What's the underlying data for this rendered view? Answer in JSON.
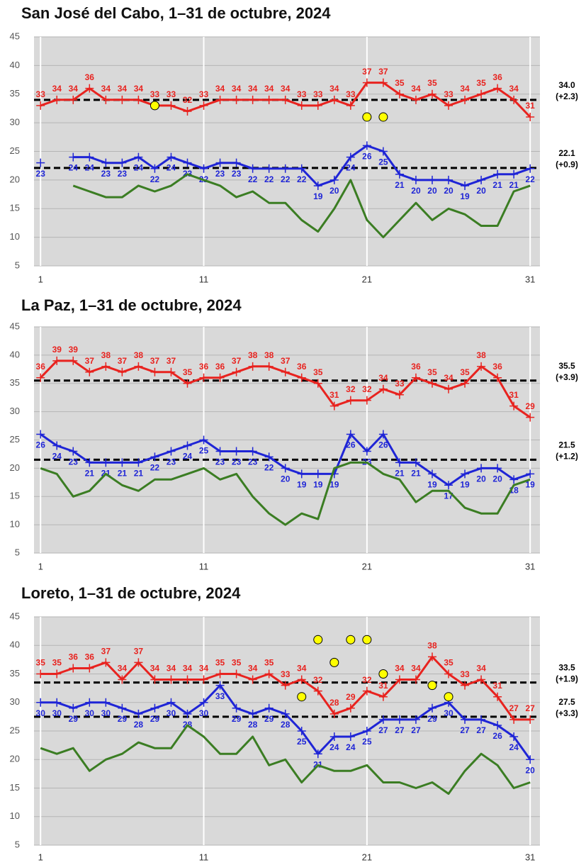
{
  "chart_data": [
    {
      "type": "line",
      "title": "San José del Cabo, 1–31 de octubre, 2024",
      "x": [
        1,
        2,
        3,
        4,
        5,
        6,
        7,
        8,
        9,
        10,
        11,
        12,
        13,
        14,
        15,
        16,
        17,
        18,
        19,
        20,
        21,
        22,
        23,
        24,
        25,
        26,
        27,
        28,
        29,
        30,
        31
      ],
      "xlim": [
        0.6,
        31.6
      ],
      "xticks": [
        1,
        11,
        21,
        31
      ],
      "ylim": [
        5,
        45
      ],
      "yticks": [
        5,
        10,
        15,
        20,
        25,
        30,
        35,
        40,
        45
      ],
      "grid": true,
      "series": [
        {
          "color": "#e8231f",
          "marker": "+",
          "data_labels": "above",
          "values": [
            33,
            34,
            34,
            36,
            34,
            34,
            34,
            33,
            33,
            32,
            33,
            34,
            34,
            34,
            34,
            34,
            33,
            33,
            34,
            33,
            37,
            37,
            35,
            34,
            35,
            33,
            34,
            35,
            36,
            34,
            31
          ]
        },
        {
          "color": "#1f25d6",
          "marker": "+",
          "data_labels": "below",
          "values": [
            23,
            null,
            24,
            24,
            23,
            23,
            24,
            22,
            24,
            23,
            22,
            23,
            23,
            22,
            22,
            22,
            22,
            19,
            20,
            24,
            26,
            25,
            21,
            20,
            20,
            20,
            19,
            20,
            21,
            21,
            22
          ]
        },
        {
          "color": "#3b7d23",
          "values": [
            null,
            null,
            19,
            18,
            17,
            17,
            19,
            18,
            19,
            21,
            20,
            19,
            17,
            18,
            16,
            16,
            13,
            11,
            15,
            20,
            13,
            10,
            13,
            16,
            13,
            15,
            14,
            12,
            12,
            18,
            19
          ]
        }
      ],
      "reference_lines": [
        {
          "value": 34,
          "label": "34.0",
          "note": "(+2.3)"
        },
        {
          "value": 22.1,
          "note": "(+0.9)"
        }
      ],
      "points": {
        "color": "#ffff00",
        "x": [
          8,
          21,
          22
        ],
        "y": [
          33,
          31,
          31
        ]
      }
    },
    {
      "type": "line",
      "title": "La Paz, 1–31 de octubre, 2024",
      "x": [
        1,
        2,
        3,
        4,
        5,
        6,
        7,
        8,
        9,
        10,
        11,
        12,
        13,
        14,
        15,
        16,
        17,
        18,
        19,
        20,
        21,
        22,
        23,
        24,
        25,
        26,
        27,
        28,
        29,
        30,
        31
      ],
      "xlim": [
        0.6,
        31.6
      ],
      "xticks": [
        1,
        11,
        21,
        31
      ],
      "ylim": [
        5,
        45
      ],
      "yticks": [
        5,
        10,
        15,
        20,
        25,
        30,
        35,
        40,
        45
      ],
      "grid": true,
      "series": [
        {
          "color": "#e8231f",
          "marker": "+",
          "data_labels": "above",
          "values": [
            36,
            39,
            39,
            37,
            38,
            37,
            38,
            37,
            37,
            35,
            36,
            36,
            37,
            38,
            38,
            37,
            36,
            35,
            31,
            32,
            32,
            34,
            33,
            36,
            35,
            34,
            35,
            38,
            36,
            31,
            29
          ]
        },
        {
          "color": "#1f25d6",
          "marker": "+",
          "data_labels": "below",
          "values": [
            26,
            24,
            23,
            21,
            21,
            21,
            21,
            22,
            23,
            24,
            25,
            23,
            23,
            23,
            22,
            20,
            19,
            19,
            19,
            26,
            23,
            26,
            21,
            21,
            19,
            17,
            19,
            20,
            20,
            18,
            19
          ]
        },
        {
          "color": "#3b7d23",
          "values": [
            20,
            19,
            15,
            16,
            19,
            17,
            16,
            18,
            18,
            19,
            20,
            18,
            19,
            15,
            12,
            10,
            12,
            11,
            20,
            21,
            21,
            19,
            18,
            14,
            16,
            16,
            13,
            12,
            12,
            17,
            18
          ]
        }
      ],
      "reference_lines": [
        {
          "value": 35.5,
          "note": "(+3.9)"
        },
        {
          "value": 21.5,
          "note": "(+1.2)"
        }
      ]
    },
    {
      "type": "line",
      "title": "Loreto, 1–31 de octubre, 2024",
      "x": [
        1,
        2,
        3,
        4,
        5,
        6,
        7,
        8,
        9,
        10,
        11,
        12,
        13,
        14,
        15,
        16,
        17,
        18,
        19,
        20,
        21,
        22,
        23,
        24,
        25,
        26,
        27,
        28,
        29,
        30,
        31
      ],
      "xlim": [
        0.6,
        31.6
      ],
      "xticks": [
        1,
        11,
        21,
        31
      ],
      "ylim": [
        5,
        45
      ],
      "yticks": [
        5,
        10,
        15,
        20,
        25,
        30,
        35,
        40,
        45
      ],
      "grid": true,
      "series": [
        {
          "color": "#e8231f",
          "marker": "+",
          "data_labels": "above",
          "values": [
            35,
            35,
            36,
            36,
            37,
            34,
            37,
            34,
            34,
            34,
            34,
            35,
            35,
            34,
            35,
            33,
            34,
            32,
            28,
            29,
            32,
            31,
            34,
            34,
            38,
            35,
            33,
            34,
            31,
            27,
            27
          ]
        },
        {
          "color": "#1f25d6",
          "marker": "+",
          "data_labels": "below",
          "values": [
            30,
            30,
            29,
            30,
            30,
            29,
            28,
            29,
            30,
            28,
            30,
            33,
            29,
            28,
            29,
            28,
            25,
            21,
            24,
            24,
            25,
            27,
            27,
            27,
            29,
            30,
            27,
            27,
            26,
            24,
            20
          ]
        },
        {
          "color": "#3b7d23",
          "values": [
            22,
            21,
            22,
            18,
            20,
            21,
            23,
            22,
            22,
            26,
            24,
            21,
            21,
            24,
            19,
            20,
            16,
            19,
            18,
            18,
            19,
            16,
            16,
            15,
            16,
            14,
            18,
            21,
            19,
            15,
            16
          ]
        }
      ],
      "reference_lines": [
        {
          "value": 33.5,
          "note": "(+1.9)"
        },
        {
          "value": 27.5,
          "note": "(+3.3)"
        }
      ],
      "points": {
        "color": "#ffff00",
        "x": [
          17,
          18,
          19,
          20,
          21,
          22,
          25,
          26
        ],
        "y": [
          31,
          41,
          37,
          41,
          41,
          35,
          33,
          31
        ]
      }
    }
  ]
}
